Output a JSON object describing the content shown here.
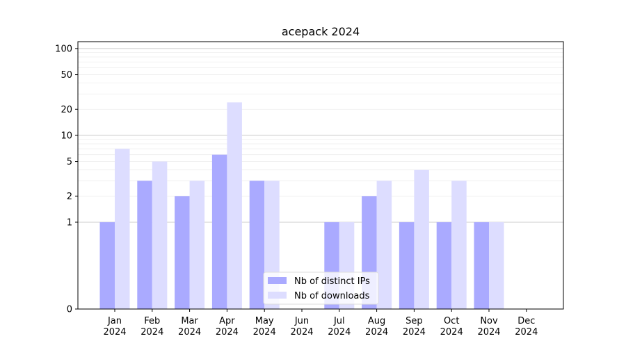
{
  "chart_data": {
    "type": "bar",
    "title": "acepack 2024",
    "xlabel": "",
    "ylabel": "",
    "y_scale": "symlog",
    "ylim": [
      0,
      120
    ],
    "yticks": [
      0,
      1,
      2,
      5,
      10,
      20,
      50,
      100
    ],
    "grid": true,
    "legend_position": "lower center",
    "categories": [
      [
        "Jan",
        "2024"
      ],
      [
        "Feb",
        "2024"
      ],
      [
        "Mar",
        "2024"
      ],
      [
        "Apr",
        "2024"
      ],
      [
        "May",
        "2024"
      ],
      [
        "Jun",
        "2024"
      ],
      [
        "Jul",
        "2024"
      ],
      [
        "Aug",
        "2024"
      ],
      [
        "Sep",
        "2024"
      ],
      [
        "Oct",
        "2024"
      ],
      [
        "Nov",
        "2024"
      ],
      [
        "Dec",
        "2024"
      ]
    ],
    "series": [
      {
        "name": "Nb of distinct IPs",
        "color": "#aaaaff",
        "values": [
          1,
          3,
          2,
          6,
          3,
          0,
          1,
          2,
          1,
          1,
          1,
          0
        ]
      },
      {
        "name": "Nb of downloads",
        "color": "#ddddff",
        "values": [
          7,
          5,
          3,
          24,
          3,
          0,
          1,
          3,
          4,
          3,
          1,
          0
        ]
      }
    ]
  }
}
